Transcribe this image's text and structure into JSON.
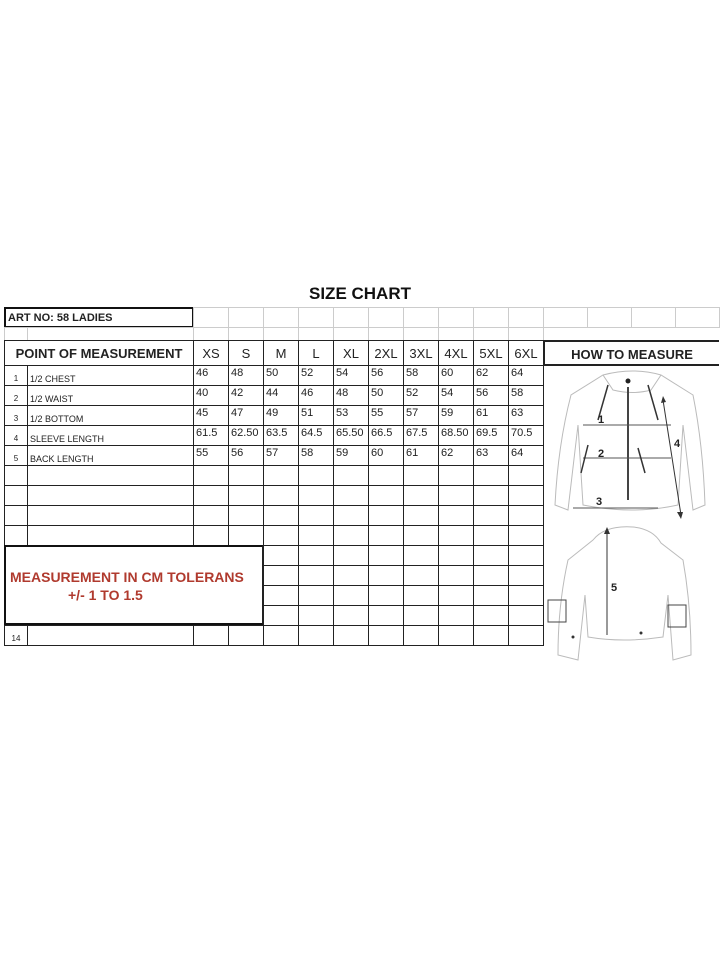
{
  "title": "SIZE CHART",
  "art_no": "ART NO:    58 LADIES",
  "header": {
    "point_label": "POINT OF MEASUREMENT",
    "sizes": [
      "XS",
      "S",
      "M",
      "L",
      "XL",
      "2XL",
      "3XL",
      "4XL",
      "5XL",
      "6XL"
    ],
    "how_to": "HOW TO MEASURE"
  },
  "rows": [
    {
      "n": "1",
      "label": "1/2 CHEST",
      "values": [
        "46",
        "48",
        "50",
        "52",
        "54",
        "56",
        "58",
        "60",
        "62",
        "64"
      ]
    },
    {
      "n": "2",
      "label": "1/2 WAIST",
      "values": [
        "40",
        "42",
        "44",
        "46",
        "48",
        "50",
        "52",
        "54",
        "56",
        "58"
      ]
    },
    {
      "n": "3",
      "label": "1/2 BOTTOM",
      "values": [
        "45",
        "47",
        "49",
        "51",
        "53",
        "55",
        "57",
        "59",
        "61",
        "63"
      ]
    },
    {
      "n": "4",
      "label": "SLEEVE LENGTH",
      "values": [
        "61.5",
        "62.50",
        "63.5",
        "64.5",
        "65.50",
        "66.5",
        "67.5",
        "68.50",
        "69.5",
        "70.5"
      ]
    },
    {
      "n": "5",
      "label": "BACK LENGTH",
      "values": [
        "55",
        "56",
        "57",
        "58",
        "59",
        "60",
        "61",
        "62",
        "63",
        "64"
      ]
    }
  ],
  "last_row_number": "14",
  "tolerance": {
    "line1": "MEASUREMENT IN CM TOLERANS",
    "line2": "+/-  1 TO 1.5"
  },
  "diagram_labels": {
    "chest": "1",
    "waist": "2",
    "bottom": "3",
    "sleeve": "4",
    "back": "5"
  },
  "colors": {
    "tolerance_text": "#b03a2e",
    "grid": "#222222"
  }
}
